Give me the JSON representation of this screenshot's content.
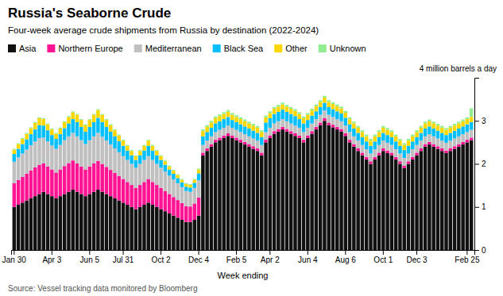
{
  "chart_data": {
    "type": "bar",
    "title": "Russia's Seaborne Crude",
    "subtitle": "Four-week average crude shipments from Russia by destination (2022-2024)",
    "xlabel": "Week ending",
    "ylabel": "4 million barrels a day",
    "annotations": [
      "Source: Vessel tracking data monitored by Bloomberg"
    ],
    "stacked": true,
    "legend": "top",
    "grid": false,
    "ylim": [
      0,
      4
    ],
    "yticks": [
      0,
      1,
      2,
      3
    ],
    "categories": [
      "Jan 30",
      null,
      null,
      null,
      null,
      null,
      null,
      null,
      null,
      "Apr 3",
      null,
      null,
      null,
      null,
      null,
      null,
      null,
      null,
      "Jun 5",
      null,
      null,
      null,
      null,
      null,
      null,
      null,
      "Jul 31",
      null,
      null,
      null,
      null,
      null,
      null,
      null,
      null,
      "Oct 2",
      null,
      null,
      null,
      null,
      null,
      null,
      null,
      null,
      "Dec 4",
      null,
      null,
      null,
      null,
      null,
      null,
      null,
      null,
      "Feb 5",
      null,
      null,
      null,
      null,
      null,
      null,
      null,
      "Apr 2",
      null,
      null,
      null,
      null,
      null,
      null,
      null,
      null,
      "Jun 4",
      null,
      null,
      null,
      null,
      null,
      null,
      null,
      null,
      "Aug 6",
      null,
      null,
      null,
      null,
      null,
      null,
      null,
      null,
      "Oct 1",
      null,
      null,
      null,
      null,
      null,
      null,
      null,
      "Dec 3",
      null,
      null,
      null,
      null,
      null,
      null,
      null,
      null,
      null,
      null,
      null,
      "Feb 25",
      null
    ],
    "series": [
      {
        "name": "Asia",
        "color": "#111111",
        "values": [
          1.0,
          1.05,
          1.1,
          1.15,
          1.2,
          1.25,
          1.3,
          1.35,
          1.3,
          1.25,
          1.2,
          1.25,
          1.3,
          1.35,
          1.4,
          1.35,
          1.3,
          1.25,
          1.3,
          1.35,
          1.4,
          1.35,
          1.3,
          1.25,
          1.2,
          1.15,
          1.1,
          1.05,
          1.0,
          0.95,
          1.0,
          1.05,
          1.1,
          1.05,
          1.0,
          0.95,
          0.9,
          0.85,
          0.8,
          0.75,
          0.7,
          0.65,
          0.65,
          0.7,
          0.8,
          2.2,
          2.3,
          2.4,
          2.5,
          2.55,
          2.6,
          2.65,
          2.6,
          2.55,
          2.5,
          2.45,
          2.4,
          2.35,
          2.3,
          2.2,
          2.5,
          2.6,
          2.7,
          2.75,
          2.8,
          2.75,
          2.7,
          2.65,
          2.6,
          2.5,
          2.6,
          2.7,
          2.8,
          2.9,
          3.0,
          2.9,
          2.85,
          2.8,
          2.75,
          2.65,
          2.5,
          2.4,
          2.3,
          2.2,
          2.1,
          2.0,
          2.1,
          2.2,
          2.3,
          2.25,
          2.2,
          2.1,
          2.0,
          1.9,
          2.0,
          2.1,
          2.2,
          2.3,
          2.4,
          2.45,
          2.4,
          2.35,
          2.3,
          2.25,
          2.3,
          2.35,
          2.4,
          2.45,
          2.5,
          2.55
        ]
      },
      {
        "name": "Northern Europe",
        "color": "#FF1493",
        "values": [
          0.55,
          0.58,
          0.6,
          0.62,
          0.65,
          0.67,
          0.68,
          0.66,
          0.64,
          0.62,
          0.6,
          0.62,
          0.65,
          0.67,
          0.68,
          0.66,
          0.64,
          0.62,
          0.64,
          0.66,
          0.67,
          0.65,
          0.63,
          0.61,
          0.59,
          0.57,
          0.55,
          0.53,
          0.51,
          0.49,
          0.51,
          0.53,
          0.55,
          0.53,
          0.51,
          0.49,
          0.47,
          0.45,
          0.43,
          0.41,
          0.39,
          0.37,
          0.36,
          0.38,
          0.42,
          0.06,
          0.06,
          0.06,
          0.06,
          0.06,
          0.06,
          0.06,
          0.06,
          0.06,
          0.06,
          0.06,
          0.06,
          0.06,
          0.06,
          0.06,
          0.06,
          0.06,
          0.06,
          0.06,
          0.06,
          0.06,
          0.06,
          0.06,
          0.06,
          0.06,
          0.06,
          0.06,
          0.06,
          0.06,
          0.06,
          0.06,
          0.06,
          0.06,
          0.06,
          0.06,
          0.06,
          0.06,
          0.06,
          0.06,
          0.06,
          0.06,
          0.06,
          0.06,
          0.06,
          0.06,
          0.06,
          0.06,
          0.06,
          0.06,
          0.06,
          0.06,
          0.06,
          0.06,
          0.06,
          0.06,
          0.06,
          0.06,
          0.06,
          0.06,
          0.06,
          0.06,
          0.06,
          0.06,
          0.06,
          0.06
        ]
      },
      {
        "name": "Mediterranean",
        "color": "#C0C0C0",
        "values": [
          0.5,
          0.52,
          0.54,
          0.56,
          0.58,
          0.6,
          0.62,
          0.6,
          0.58,
          0.56,
          0.55,
          0.57,
          0.6,
          0.62,
          0.64,
          0.63,
          0.61,
          0.59,
          0.61,
          0.63,
          0.65,
          0.63,
          0.61,
          0.59,
          0.57,
          0.55,
          0.53,
          0.51,
          0.49,
          0.47,
          0.49,
          0.51,
          0.53,
          0.51,
          0.49,
          0.47,
          0.45,
          0.43,
          0.41,
          0.39,
          0.37,
          0.35,
          0.34,
          0.36,
          0.4,
          0.18,
          0.18,
          0.18,
          0.18,
          0.18,
          0.18,
          0.18,
          0.18,
          0.18,
          0.18,
          0.18,
          0.18,
          0.18,
          0.18,
          0.18,
          0.18,
          0.18,
          0.18,
          0.18,
          0.18,
          0.18,
          0.18,
          0.18,
          0.18,
          0.18,
          0.18,
          0.18,
          0.18,
          0.18,
          0.18,
          0.18,
          0.18,
          0.18,
          0.18,
          0.18,
          0.18,
          0.18,
          0.18,
          0.18,
          0.18,
          0.18,
          0.18,
          0.18,
          0.18,
          0.18,
          0.18,
          0.18,
          0.18,
          0.18,
          0.18,
          0.18,
          0.18,
          0.18,
          0.18,
          0.18,
          0.18,
          0.18,
          0.18,
          0.18,
          0.18,
          0.18,
          0.18,
          0.18,
          0.18,
          0.18
        ]
      },
      {
        "name": "Black Sea",
        "color": "#00BFFF",
        "values": [
          0.18,
          0.2,
          0.22,
          0.24,
          0.26,
          0.28,
          0.3,
          0.28,
          0.26,
          0.24,
          0.23,
          0.25,
          0.28,
          0.3,
          0.32,
          0.33,
          0.31,
          0.29,
          0.31,
          0.33,
          0.35,
          0.34,
          0.32,
          0.3,
          0.28,
          0.26,
          0.24,
          0.22,
          0.2,
          0.18,
          0.2,
          0.22,
          0.24,
          0.22,
          0.2,
          0.18,
          0.16,
          0.14,
          0.13,
          0.12,
          0.11,
          0.1,
          0.1,
          0.12,
          0.16,
          0.2,
          0.2,
          0.2,
          0.2,
          0.2,
          0.2,
          0.2,
          0.18,
          0.18,
          0.18,
          0.18,
          0.18,
          0.18,
          0.18,
          0.18,
          0.22,
          0.22,
          0.22,
          0.22,
          0.22,
          0.22,
          0.22,
          0.22,
          0.2,
          0.2,
          0.18,
          0.18,
          0.18,
          0.18,
          0.18,
          0.18,
          0.18,
          0.18,
          0.18,
          0.18,
          0.18,
          0.18,
          0.18,
          0.18,
          0.18,
          0.18,
          0.18,
          0.18,
          0.18,
          0.18,
          0.18,
          0.18,
          0.18,
          0.18,
          0.18,
          0.18,
          0.18,
          0.18,
          0.18,
          0.18,
          0.18,
          0.18,
          0.18,
          0.18,
          0.18,
          0.18,
          0.18,
          0.18,
          0.18,
          0.18
        ]
      },
      {
        "name": "Other",
        "color": "#FFD700",
        "values": [
          0.1,
          0.11,
          0.12,
          0.13,
          0.14,
          0.15,
          0.16,
          0.15,
          0.14,
          0.13,
          0.12,
          0.13,
          0.14,
          0.15,
          0.16,
          0.17,
          0.16,
          0.15,
          0.16,
          0.17,
          0.18,
          0.17,
          0.16,
          0.15,
          0.14,
          0.13,
          0.12,
          0.11,
          0.1,
          0.09,
          0.1,
          0.11,
          0.12,
          0.11,
          0.1,
          0.09,
          0.08,
          0.07,
          0.07,
          0.07,
          0.06,
          0.06,
          0.06,
          0.07,
          0.09,
          0.12,
          0.12,
          0.12,
          0.12,
          0.12,
          0.12,
          0.12,
          0.12,
          0.12,
          0.12,
          0.12,
          0.12,
          0.12,
          0.12,
          0.12,
          0.12,
          0.12,
          0.12,
          0.12,
          0.12,
          0.12,
          0.12,
          0.12,
          0.12,
          0.12,
          0.12,
          0.12,
          0.12,
          0.12,
          0.12,
          0.12,
          0.12,
          0.12,
          0.12,
          0.12,
          0.12,
          0.12,
          0.12,
          0.12,
          0.12,
          0.12,
          0.12,
          0.12,
          0.12,
          0.12,
          0.12,
          0.12,
          0.12,
          0.12,
          0.12,
          0.12,
          0.12,
          0.12,
          0.12,
          0.12,
          0.12,
          0.12,
          0.12,
          0.12,
          0.12,
          0.12,
          0.12,
          0.12,
          0.12,
          0.12
        ]
      },
      {
        "name": "Unknown",
        "color": "#90EE90",
        "values": [
          0.02,
          0.02,
          0.02,
          0.02,
          0.02,
          0.02,
          0.02,
          0.02,
          0.02,
          0.02,
          0.02,
          0.02,
          0.02,
          0.02,
          0.02,
          0.02,
          0.02,
          0.02,
          0.02,
          0.02,
          0.02,
          0.02,
          0.02,
          0.02,
          0.02,
          0.02,
          0.02,
          0.02,
          0.02,
          0.02,
          0.02,
          0.02,
          0.02,
          0.02,
          0.02,
          0.02,
          0.02,
          0.02,
          0.02,
          0.02,
          0.02,
          0.02,
          0.02,
          0.02,
          0.02,
          0.04,
          0.04,
          0.04,
          0.04,
          0.04,
          0.04,
          0.04,
          0.04,
          0.04,
          0.04,
          0.04,
          0.04,
          0.04,
          0.04,
          0.04,
          0.04,
          0.04,
          0.04,
          0.04,
          0.04,
          0.04,
          0.04,
          0.04,
          0.04,
          0.04,
          0.04,
          0.04,
          0.04,
          0.04,
          0.04,
          0.04,
          0.04,
          0.04,
          0.04,
          0.04,
          0.04,
          0.04,
          0.04,
          0.04,
          0.04,
          0.04,
          0.04,
          0.04,
          0.04,
          0.04,
          0.04,
          0.04,
          0.04,
          0.04,
          0.04,
          0.04,
          0.04,
          0.04,
          0.04,
          0.04,
          0.04,
          0.04,
          0.04,
          0.04,
          0.04,
          0.04,
          0.04,
          0.04,
          0.04,
          0.2
        ]
      }
    ]
  }
}
